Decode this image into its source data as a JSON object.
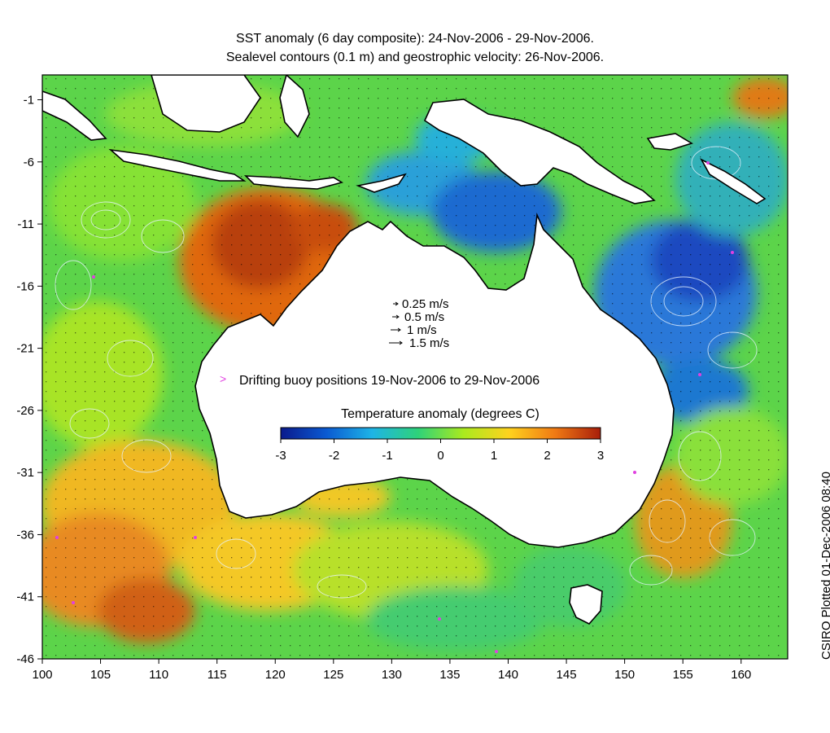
{
  "title_line1": "SST anomaly (6 day composite): 24-Nov-2006 - 29-Nov-2006.",
  "title_line2": "Sealevel contours (0.1 m) and geostrophic velocity: 26-Nov-2006.",
  "credit": "CSIRO Plotted 01-Dec-2006 08:40",
  "axes": {
    "lon_range": [
      100,
      164
    ],
    "lat_range": [
      -46,
      1
    ],
    "lon_ticks": [
      "100",
      "105",
      "110",
      "115",
      "120",
      "125",
      "130",
      "135",
      "140",
      "145",
      "150",
      "155",
      "160"
    ],
    "lat_ticks": [
      "-1",
      "-6",
      "-11",
      "-16",
      "-21",
      "-26",
      "-31",
      "-36",
      "-41",
      "-46"
    ]
  },
  "velocity_legend": {
    "items": [
      {
        "label": "0.25 m/s",
        "speed": 0.25
      },
      {
        "label": "0.5 m/s",
        "speed": 0.5
      },
      {
        "label": "1 m/s",
        "speed": 1
      },
      {
        "label": "1.5 m/s",
        "speed": 1.5
      }
    ]
  },
  "buoy_legend": {
    "label": "Drifting buoy positions 19-Nov-2006 to 29-Nov-2006",
    "color": "#e040e0"
  },
  "colorbar": {
    "title": "Temperature anomaly (degrees C)",
    "ticks": [
      "-3",
      "-2",
      "-1",
      "0",
      "1",
      "2",
      "3"
    ],
    "range": [
      -3,
      3
    ],
    "colors": [
      "#0a1a8c",
      "#0a5ad2",
      "#1eb4e6",
      "#2ed27a",
      "#aaea1e",
      "#ffd21e",
      "#f07a14",
      "#a81e0a"
    ]
  },
  "colors": {
    "land": "#ffffff",
    "coastline": "#000000",
    "sealevel_contour": "#e6f2ff",
    "velocity_arrow": "#000000"
  }
}
